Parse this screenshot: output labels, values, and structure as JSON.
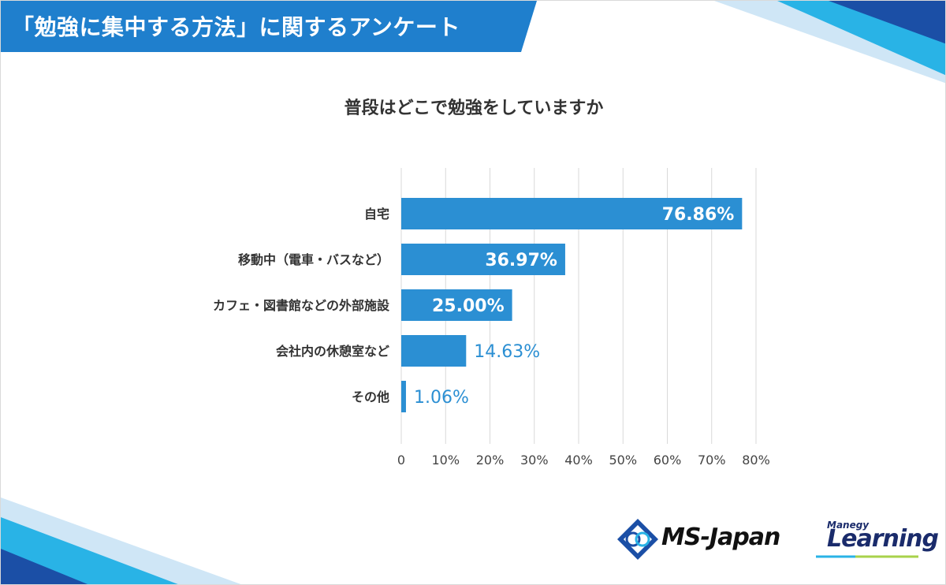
{
  "header": {
    "title": "「勉強に集中する方法」に関するアンケート"
  },
  "chart_data": {
    "type": "bar",
    "orientation": "horizontal",
    "title": "普段はどこで勉強をしていますか",
    "categories": [
      "自宅",
      "移動中（電車・バスなど）",
      "カフェ・図書館などの外部施設",
      "会社内の休憩室など",
      "その他"
    ],
    "values": [
      76.86,
      36.97,
      25.0,
      14.63,
      1.06
    ],
    "value_labels": [
      "76.86%",
      "36.97%",
      "25.00%",
      "14.63%",
      "1.06%"
    ],
    "xlim": [
      0,
      80
    ],
    "x_ticks": [
      0,
      10,
      20,
      30,
      40,
      50,
      60,
      70,
      80
    ],
    "x_tick_labels": [
      "0",
      "10%",
      "20%",
      "30%",
      "40%",
      "50%",
      "60%",
      "70%",
      "80%"
    ],
    "grid": true,
    "bar_color": "#2b8fd3"
  },
  "logos": {
    "ms_japan": "MS-Japan",
    "manegy": "Manegy",
    "learning": "Learning"
  },
  "colors": {
    "header_blue": "#1f7fcd",
    "accent_dark_blue": "#1b4fa6",
    "accent_light_blue": "#29b3e6"
  }
}
